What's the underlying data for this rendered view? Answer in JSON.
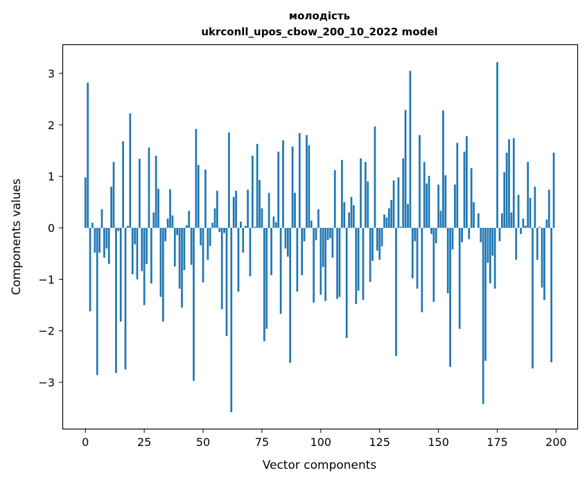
{
  "chart_data": {
    "type": "bar",
    "title": "молодість",
    "subtitle": "ukrconll_upos_cbow_200_10_2022 model",
    "xlabel": "Vector components",
    "ylabel": "Components values",
    "xlim": [
      -9.5,
      209
    ],
    "ylim": [
      -3.9,
      3.55
    ],
    "xticks": [
      0,
      25,
      50,
      75,
      100,
      125,
      150,
      175,
      200
    ],
    "yticks": [
      -3,
      -2,
      -1,
      0,
      1,
      2,
      3
    ],
    "xtick_labels": [
      "0",
      "25",
      "50",
      "75",
      "100",
      "125",
      "150",
      "175",
      "200"
    ],
    "ytick_labels": [
      "−3",
      "−2",
      "−1",
      "0",
      "1",
      "2",
      "3"
    ],
    "bar_color": "#1f77b4",
    "grid": false,
    "legend": "none",
    "values": [
      0.98,
      2.82,
      -1.62,
      0.1,
      -0.48,
      -2.86,
      -0.48,
      0.36,
      -0.58,
      -0.4,
      -0.7,
      0.8,
      1.28,
      -2.82,
      -0.06,
      -1.82,
      1.68,
      -2.75,
      0.04,
      2.22,
      -0.9,
      -0.32,
      -1.0,
      1.34,
      -0.84,
      -1.5,
      -0.7,
      1.56,
      -1.08,
      0.3,
      1.4,
      0.76,
      -1.34,
      -1.82,
      -0.26,
      0.18,
      0.75,
      0.24,
      -0.75,
      -0.14,
      -1.18,
      -1.55,
      -0.82,
      0.05,
      0.33,
      -0.72,
      -2.97,
      1.92,
      1.22,
      -0.34,
      -1.06,
      1.13,
      -0.62,
      -0.35,
      0.1,
      0.38,
      0.72,
      -0.08,
      -1.58,
      -0.1,
      -2.1,
      1.85,
      -3.58,
      0.6,
      0.72,
      -1.24,
      0.12,
      -0.48,
      0.04,
      0.74,
      -0.94,
      1.4,
      0.02,
      1.63,
      0.93,
      0.38,
      -2.2,
      -1.96,
      0.68,
      -0.92,
      0.22,
      0.11,
      1.48,
      -1.67,
      1.7,
      -0.4,
      -0.56,
      -2.62,
      1.58,
      0.68,
      -1.24,
      1.84,
      -0.92,
      -0.26,
      1.8,
      1.6,
      0.14,
      -1.45,
      -0.24,
      0.36,
      -1.3,
      -0.76,
      -1.42,
      -0.24,
      -0.2,
      -0.58,
      1.12,
      -1.38,
      -1.34,
      1.32,
      0.5,
      -2.14,
      0.3,
      0.6,
      0.44,
      -1.48,
      -1.22,
      1.35,
      -1.4,
      1.28,
      0.9,
      -1.05,
      -0.64,
      1.97,
      -0.44,
      -0.62,
      -0.36,
      0.26,
      0.2,
      0.38,
      0.54,
      0.92,
      -2.49,
      0.98,
      0.02,
      1.35,
      2.29,
      0.46,
      3.05,
      -0.98,
      -0.26,
      -1.18,
      1.8,
      -1.64,
      1.28,
      0.86,
      1.01,
      -0.12,
      -1.44,
      -0.3,
      0.84,
      0.33,
      2.28,
      1.02,
      -1.27,
      -2.7,
      -0.42,
      0.84,
      1.65,
      -1.96,
      -0.28,
      1.48,
      1.78,
      -0.22,
      1.16,
      0.5,
      0.0,
      0.28,
      -0.28,
      -3.42,
      -2.58,
      -0.68,
      -1.08,
      -0.54,
      -1.18,
      3.22,
      -0.26,
      0.28,
      1.08,
      1.46,
      1.72,
      0.3,
      1.74,
      -0.62,
      0.64,
      -0.12,
      0.18,
      0.04,
      1.28,
      0.58,
      -2.73,
      0.8,
      -0.62,
      0.02,
      -1.16,
      -1.4,
      0.16,
      0.74,
      -2.61,
      1.46
    ]
  }
}
